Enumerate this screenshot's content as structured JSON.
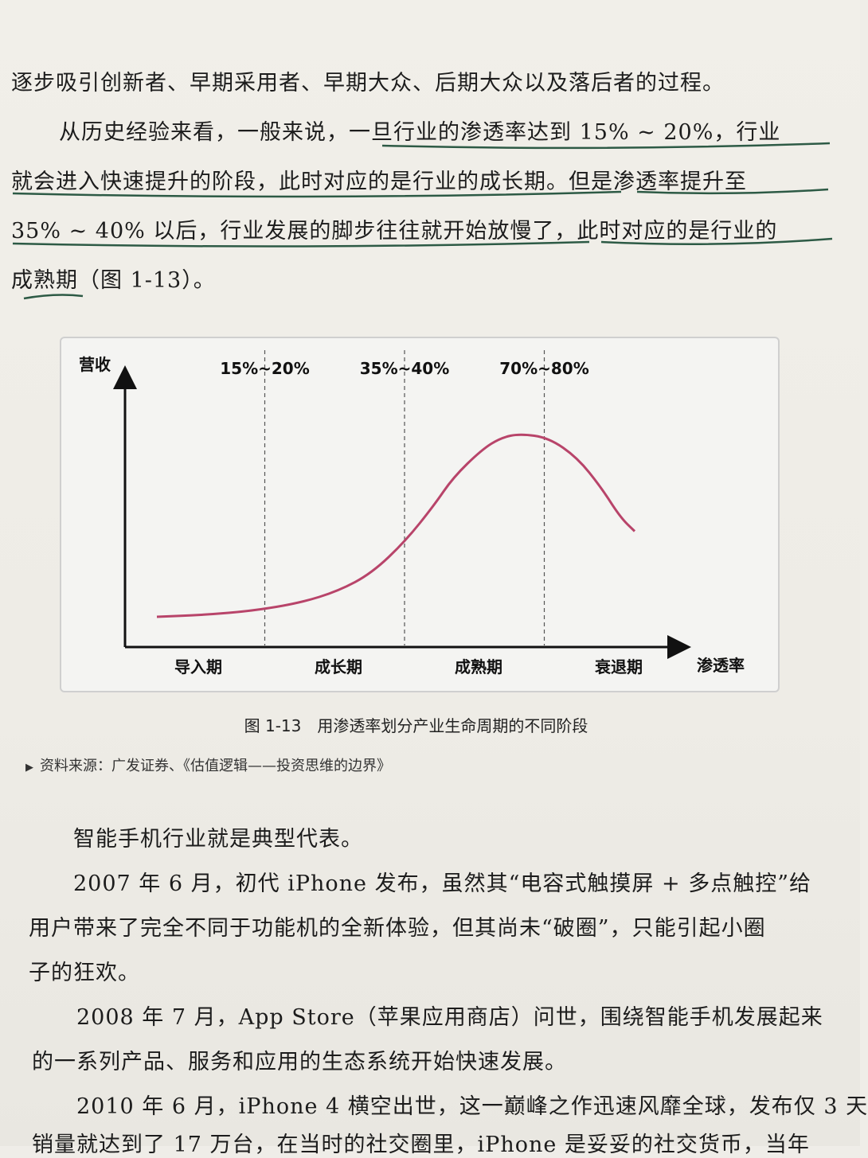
{
  "top_paragraphs": [
    {
      "text": "逐步吸引创新者、早期采用者、早期大众、后期大众以及落后者的过程。"
    },
    {
      "text": "从历史经验来看，一般来说，一旦行业的渗透率达到 15% ~ 20%，行业"
    },
    {
      "text": "就会进入快速提升的阶段，此时对应的是行业的成长期。但是渗透率提升至"
    },
    {
      "text": "35% ~ 40% 以后，行业发展的脚步往往就开始放慢了，此时对应的是行业的"
    },
    {
      "text": "成熟期（图 1-13）。"
    }
  ],
  "chart_data": {
    "type": "line",
    "ylabel": "营收",
    "xlabel": "渗透率",
    "threshold_labels": [
      "15%~20%",
      "35%~40%",
      "70%~80%"
    ],
    "stage_labels": [
      "导入期",
      "成长期",
      "成熟期",
      "衰退期"
    ],
    "series": [
      {
        "color": "#b8446a",
        "x": [
          0,
          0.1,
          0.2,
          0.3,
          0.38,
          0.45,
          0.52,
          0.58,
          0.62,
          0.68,
          0.72,
          0.76,
          0.82,
          0.88,
          0.93,
          0.97,
          1.0
        ],
        "y": [
          0.0,
          0.01,
          0.03,
          0.07,
          0.13,
          0.22,
          0.38,
          0.56,
          0.7,
          0.84,
          0.9,
          0.92,
          0.9,
          0.8,
          0.65,
          0.5,
          0.43
        ]
      }
    ],
    "dividers_at": [
      0.25,
      0.5,
      0.75
    ]
  },
  "caption": "图 1-13　用渗透率划分产业生命周期的不同阶段",
  "source": "资料来源：广发证券、《估值逻辑——投资思维的边界》",
  "source_marker": "▶",
  "bottom_paragraphs": [
    {
      "text": "智能手机行业就是典型代表。"
    },
    {
      "text": "2007 年 6 月，初代 iPhone 发布，虽然其“电容式触摸屏 + 多点触控”给"
    },
    {
      "text": "用户带来了完全不同于功能机的全新体验，但其尚未“破圈”，只能引起小圈"
    },
    {
      "text": "子的狂欢。"
    },
    {
      "text": "2008 年 7 月，App Store（苹果应用商店）问世，围绕智能手机发展起来"
    },
    {
      "text": "的一系列产品、服务和应用的生态系统开始快速发展。"
    },
    {
      "text": "2010 年 6 月，iPhone 4 横空出世，这一巅峰之作迅速风靡全球，发布仅 3 天"
    },
    {
      "text": "销量就达到了 17 万台，在当时的社交圈里，iPhone 是妥妥的社交货币，当年"
    }
  ]
}
